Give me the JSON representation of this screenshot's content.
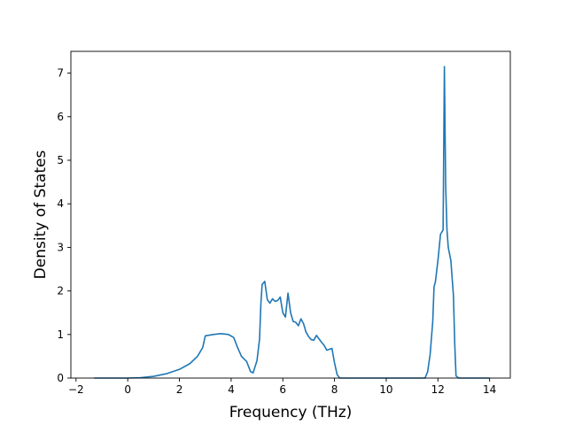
{
  "chart_data": {
    "type": "line",
    "title": "",
    "xlabel": "Frequency (THz)",
    "ylabel": "Density of States",
    "xlim": [
      -2.2,
      14.8
    ],
    "ylim": [
      0,
      7.5
    ],
    "xticks": [
      "−2",
      "0",
      "2",
      "4",
      "6",
      "8",
      "10",
      "12",
      "14"
    ],
    "xtick_values": [
      -2,
      0,
      2,
      4,
      6,
      8,
      10,
      12,
      14
    ],
    "yticks": [
      "0",
      "1",
      "2",
      "3",
      "4",
      "5",
      "6",
      "7"
    ],
    "ytick_values": [
      0,
      1,
      2,
      3,
      4,
      5,
      6,
      7
    ],
    "grid": false,
    "series": [
      {
        "name": "",
        "color": "#1f77b4",
        "x": [
          -1.3,
          -0.5,
          0,
          0.5,
          1,
          1.5,
          2,
          2.4,
          2.7,
          2.9,
          3.0,
          3.3,
          3.6,
          3.9,
          4.1,
          4.25,
          4.4,
          4.6,
          4.75,
          4.85,
          5.0,
          5.1,
          5.15,
          5.2,
          5.3,
          5.4,
          5.5,
          5.6,
          5.7,
          5.8,
          5.9,
          6.0,
          6.1,
          6.2,
          6.3,
          6.4,
          6.5,
          6.6,
          6.7,
          6.8,
          6.9,
          7.0,
          7.1,
          7.2,
          7.3,
          7.4,
          7.5,
          7.6,
          7.7,
          7.9,
          8.0,
          8.1,
          8.2,
          8.4,
          9.0,
          10.0,
          11.0,
          11.5,
          11.6,
          11.7,
          11.8,
          11.85,
          11.9,
          12.0,
          12.1,
          12.2,
          12.25,
          12.3,
          12.35,
          12.4,
          12.5,
          12.6,
          12.65,
          12.7,
          12.8,
          13.0,
          14.0
        ],
        "y": [
          0,
          0,
          0,
          0.01,
          0.04,
          0.1,
          0.2,
          0.33,
          0.5,
          0.7,
          0.97,
          1.0,
          1.02,
          1.0,
          0.93,
          0.7,
          0.5,
          0.38,
          0.15,
          0.12,
          0.4,
          0.9,
          1.7,
          2.15,
          2.22,
          1.8,
          1.72,
          1.82,
          1.76,
          1.78,
          1.86,
          1.5,
          1.4,
          1.95,
          1.5,
          1.3,
          1.28,
          1.2,
          1.36,
          1.25,
          1.05,
          0.95,
          0.88,
          0.87,
          0.98,
          0.9,
          0.82,
          0.75,
          0.64,
          0.68,
          0.35,
          0.08,
          0,
          0,
          0,
          0,
          0,
          0,
          0.14,
          0.55,
          1.3,
          2.1,
          2.2,
          2.7,
          3.3,
          3.4,
          7.15,
          4.4,
          3.4,
          3.0,
          2.7,
          1.9,
          0.8,
          0.05,
          0,
          0,
          0
        ]
      }
    ]
  }
}
